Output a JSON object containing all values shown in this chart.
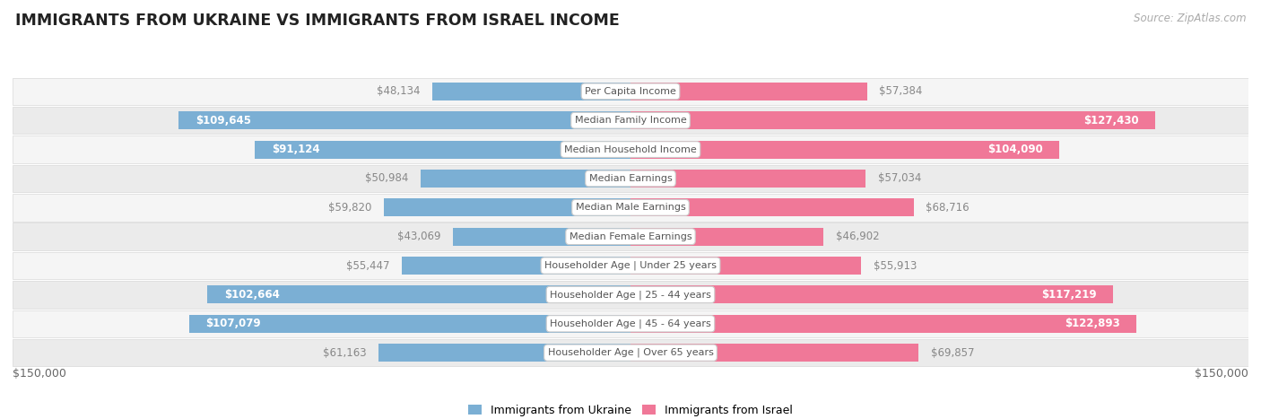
{
  "title": "IMMIGRANTS FROM UKRAINE VS IMMIGRANTS FROM ISRAEL INCOME",
  "source": "Source: ZipAtlas.com",
  "categories": [
    "Per Capita Income",
    "Median Family Income",
    "Median Household Income",
    "Median Earnings",
    "Median Male Earnings",
    "Median Female Earnings",
    "Householder Age | Under 25 years",
    "Householder Age | 25 - 44 years",
    "Householder Age | 45 - 64 years",
    "Householder Age | Over 65 years"
  ],
  "ukraine_values": [
    48134,
    109645,
    91124,
    50984,
    59820,
    43069,
    55447,
    102664,
    107079,
    61163
  ],
  "israel_values": [
    57384,
    127430,
    104090,
    57034,
    68716,
    46902,
    55913,
    117219,
    122893,
    69857
  ],
  "ukraine_labels": [
    "$48,134",
    "$109,645",
    "$91,124",
    "$50,984",
    "$59,820",
    "$43,069",
    "$55,447",
    "$102,664",
    "$107,079",
    "$61,163"
  ],
  "israel_labels": [
    "$57,384",
    "$127,430",
    "$104,090",
    "$57,034",
    "$68,716",
    "$46,902",
    "$55,913",
    "$117,219",
    "$122,893",
    "$69,857"
  ],
  "ukraine_color": "#7bafd4",
  "israel_color": "#f07898",
  "ukraine_label_color_inside": "#ffffff",
  "ukraine_label_color_outside": "#888888",
  "israel_label_color_inside": "#ffffff",
  "israel_label_color_outside": "#888888",
  "ukraine_inside_threshold": 75000,
  "israel_inside_threshold": 75000,
  "max_value": 150000,
  "row_bg_even": "#f5f5f5",
  "row_bg_odd": "#ebebeb",
  "row_border_color": "#d8d8d8",
  "background_color": "#ffffff",
  "legend_ukraine": "Immigrants from Ukraine",
  "legend_israel": "Immigrants from Israel",
  "axis_label_left": "$150,000",
  "axis_label_right": "$150,000",
  "title_fontsize": 12.5,
  "source_fontsize": 8.5,
  "bar_label_fontsize": 8.5,
  "category_fontsize": 8,
  "legend_fontsize": 9,
  "axis_fontsize": 9
}
